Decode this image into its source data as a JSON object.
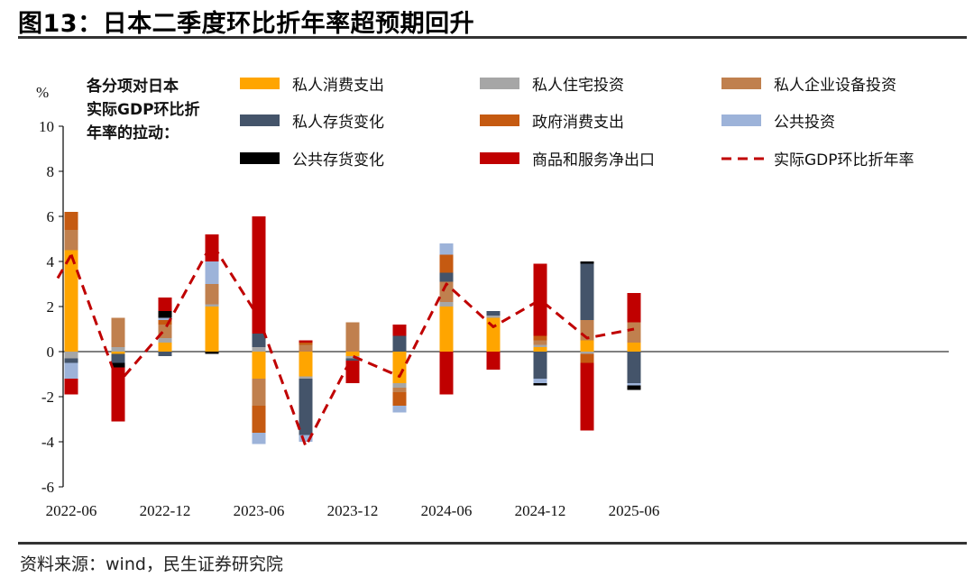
{
  "title": "图13：日本二季度环比折年率超预期回升",
  "source": "资料来源：wind，民生证券研究院",
  "colors": {
    "consumption": "#FFA500",
    "housing": "#A6A6A6",
    "capex": "#C0804E",
    "inventory": "#44546A",
    "gov": "#C55A11",
    "public_inv": "#9DB3D9",
    "public_stock": "#000000",
    "net_exports": "#C00000",
    "gdp_line": "#C00000"
  },
  "chart_data": {
    "type": "bar",
    "stacked": true,
    "y_unit": "%",
    "ylim": [
      -6,
      10
    ],
    "yticks": [
      -6,
      -4,
      -2,
      0,
      2,
      4,
      6,
      8,
      10
    ],
    "x_tick_labels": [
      "2022-06",
      "2022-12",
      "2023-06",
      "2023-12",
      "2024-06",
      "2024-12",
      "2025-06"
    ],
    "x_tick_positions": [
      0,
      2,
      4,
      6,
      8,
      10,
      12
    ],
    "periods": [
      "2022-06",
      "2022-09",
      "2022-12",
      "2023-03",
      "2023-06",
      "2023-09",
      "2023-12",
      "2024-03",
      "2024-06",
      "2024-09",
      "2024-12",
      "2025-03",
      "2025-06"
    ],
    "legend_title": "各分项对日本实际GDP环比折年率的拉动：",
    "series": [
      {
        "name": "私人消费支出",
        "key": "consumption",
        "values": [
          4.5,
          -0.1,
          0.4,
          2.0,
          -1.2,
          -1.1,
          -0.2,
          -1.4,
          2.0,
          1.5,
          0.2,
          0.5,
          0.4
        ]
      },
      {
        "name": "私人住宅投资",
        "key": "housing",
        "values": [
          -0.3,
          0.2,
          0.2,
          0.1,
          0.2,
          -0.1,
          -0.1,
          -0.2,
          0.2,
          0.1,
          0.1,
          -0.1,
          0.0
        ]
      },
      {
        "name": "私人企业设备投资",
        "key": "capex",
        "values": [
          0.9,
          1.3,
          0.6,
          0.9,
          -1.2,
          0.3,
          1.3,
          -0.2,
          0.9,
          0.0,
          0.2,
          0.9,
          0.9
        ]
      },
      {
        "name": "私人存货变化",
        "key": "inventory",
        "values": [
          -0.2,
          -0.4,
          -0.2,
          0.0,
          0.6,
          -2.5,
          -0.1,
          0.7,
          0.4,
          0.2,
          -1.2,
          2.5,
          -1.4
        ]
      },
      {
        "name": "政府消费支出",
        "key": "gov",
        "values": [
          0.8,
          0.0,
          0.2,
          0.0,
          -1.2,
          0.1,
          0.0,
          -0.6,
          0.8,
          0.0,
          0.2,
          -0.4,
          0.0
        ]
      },
      {
        "name": "公共投资",
        "key": "public_inv",
        "values": [
          -0.7,
          0.0,
          0.1,
          1.0,
          -0.5,
          -0.3,
          0.0,
          -0.3,
          0.5,
          0.0,
          -0.2,
          0.0,
          -0.1
        ]
      },
      {
        "name": "公共存货变化",
        "key": "public_stock",
        "values": [
          0.0,
          -0.2,
          0.3,
          -0.1,
          0.0,
          0.0,
          0.0,
          0.0,
          0.0,
          0.0,
          -0.1,
          0.1,
          -0.2
        ]
      },
      {
        "name": "商品和服务净出口",
        "key": "net_exports",
        "values": [
          -0.7,
          -2.4,
          0.6,
          1.2,
          5.2,
          0.1,
          -1.0,
          0.5,
          -1.9,
          -0.8,
          3.2,
          -3.0,
          1.3
        ]
      }
    ],
    "line": {
      "name": "实际GDP环比折年率",
      "key": "gdp_line",
      "values": [
        4.3,
        -1.4,
        1.0,
        4.8,
        1.5,
        -4.2,
        -0.2,
        -1.1,
        3.0,
        1.1,
        2.3,
        0.6,
        1.0
      ]
    }
  }
}
